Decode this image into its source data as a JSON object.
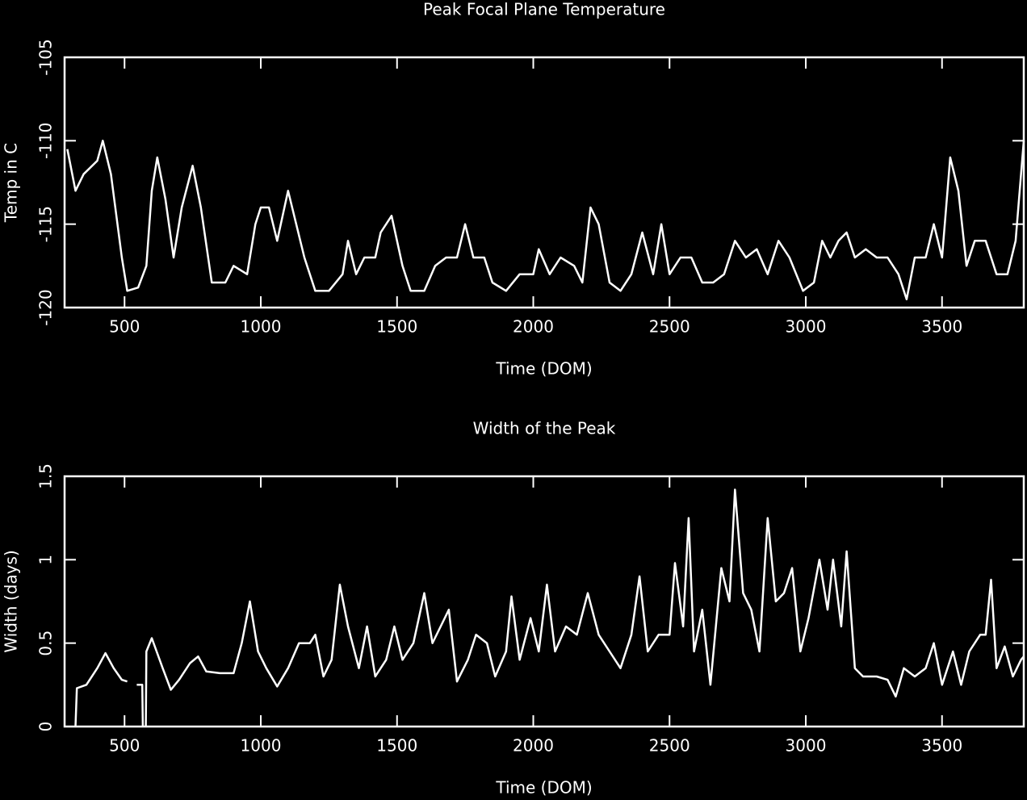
{
  "chart_data": [
    {
      "type": "line",
      "title": "Peak Focal Plane Temperature",
      "xlabel": "Time (DOM)",
      "ylabel": "Temp in C",
      "xlim": [
        280,
        3800
      ],
      "ylim": [
        -120,
        -105
      ],
      "xticks": [
        500,
        1000,
        1500,
        2000,
        2500,
        3000,
        3500
      ],
      "yticks": [
        -120,
        -115,
        -110,
        -105
      ],
      "color": "#ffffff",
      "x": [
        290,
        320,
        350,
        400,
        420,
        450,
        490,
        510,
        550,
        580,
        600,
        620,
        650,
        680,
        710,
        750,
        780,
        820,
        870,
        900,
        950,
        980,
        1000,
        1030,
        1060,
        1100,
        1130,
        1160,
        1200,
        1250,
        1300,
        1320,
        1350,
        1380,
        1420,
        1440,
        1480,
        1520,
        1550,
        1600,
        1640,
        1680,
        1720,
        1750,
        1780,
        1820,
        1850,
        1900,
        1950,
        2000,
        2020,
        2060,
        2100,
        2150,
        2180,
        2210,
        2240,
        2280,
        2320,
        2360,
        2400,
        2440,
        2470,
        2500,
        2540,
        2580,
        2620,
        2660,
        2700,
        2740,
        2780,
        2820,
        2860,
        2900,
        2940,
        2990,
        3030,
        3060,
        3090,
        3120,
        3150,
        3180,
        3220,
        3260,
        3300,
        3340,
        3370,
        3400,
        3440,
        3470,
        3500,
        3530,
        3560,
        3590,
        3620,
        3660,
        3700,
        3740,
        3770,
        3800
      ],
      "values": [
        -110.5,
        -113,
        -112,
        -111.2,
        -110,
        -112,
        -117,
        -119,
        -118.8,
        -117.5,
        -113,
        -111,
        -113.5,
        -117,
        -114,
        -111.5,
        -114,
        -118.5,
        -118.5,
        -117.5,
        -118,
        -115,
        -114,
        -114,
        -116,
        -113,
        -115,
        -117,
        -119,
        -119,
        -118,
        -116,
        -118,
        -117,
        -117,
        -115.5,
        -114.5,
        -117.5,
        -119,
        -119,
        -117.5,
        -117,
        -117,
        -115,
        -117,
        -117,
        -118.5,
        -119,
        -118,
        -118,
        -116.5,
        -118,
        -117,
        -117.5,
        -118.5,
        -114,
        -115,
        -118.5,
        -119,
        -118,
        -115.5,
        -118,
        -115,
        -118,
        -117,
        -117,
        -118.5,
        -118.5,
        -118,
        -116,
        -117,
        -116.5,
        -118,
        -116,
        -117,
        -119,
        -118.5,
        -116,
        -117,
        -116,
        -115.5,
        -117,
        -116.5,
        -117,
        -117,
        -118,
        -119.5,
        -117,
        -117,
        -115,
        -117,
        -111,
        -113,
        -117.5,
        -116,
        -116,
        -118,
        -118,
        -116,
        -110
      ]
    },
    {
      "type": "line",
      "title": "Width of the Peak",
      "xlabel": "Time (DOM)",
      "ylabel": "Width (days)",
      "xlim": [
        280,
        3800
      ],
      "ylim": [
        0,
        1.5
      ],
      "xticks": [
        500,
        1000,
        1500,
        2000,
        2500,
        3000,
        3500
      ],
      "yticks": [
        0,
        0.5,
        1,
        1.5
      ],
      "color": "#ffffff",
      "x": [
        320,
        325,
        360,
        400,
        430,
        460,
        490,
        510,
        530,
        545,
        565,
        567,
        572,
        578,
        580,
        600,
        640,
        670,
        700,
        740,
        770,
        800,
        850,
        900,
        930,
        960,
        990,
        1020,
        1060,
        1100,
        1140,
        1180,
        1200,
        1230,
        1260,
        1290,
        1320,
        1360,
        1390,
        1420,
        1460,
        1490,
        1520,
        1560,
        1600,
        1630,
        1660,
        1690,
        1720,
        1760,
        1790,
        1830,
        1860,
        1900,
        1920,
        1950,
        1990,
        2020,
        2050,
        2080,
        2120,
        2160,
        2200,
        2240,
        2280,
        2320,
        2360,
        2390,
        2420,
        2460,
        2500,
        2520,
        2550,
        2570,
        2590,
        2620,
        2650,
        2690,
        2720,
        2740,
        2770,
        2800,
        2830,
        2860,
        2890,
        2920,
        2950,
        2980,
        3010,
        3050,
        3080,
        3100,
        3130,
        3150,
        3180,
        3210,
        3260,
        3300,
        3330,
        3360,
        3400,
        3440,
        3470,
        3500,
        3540,
        3570,
        3600,
        3640,
        3660,
        3680,
        3700,
        3730,
        3760,
        3790,
        3800
      ],
      "values": [
        0,
        0.23,
        0.25,
        0.35,
        0.44,
        0.35,
        0.28,
        0.27,
        null,
        0.25,
        0.25,
        0,
        null,
        0,
        0.45,
        0.53,
        0.35,
        0.22,
        0.28,
        0.38,
        0.42,
        0.33,
        0.32,
        0.32,
        0.5,
        0.75,
        0.45,
        0.35,
        0.24,
        0.35,
        0.5,
        0.5,
        0.55,
        0.3,
        0.4,
        0.85,
        0.6,
        0.35,
        0.6,
        0.3,
        0.4,
        0.6,
        0.4,
        0.5,
        0.8,
        0.5,
        0.6,
        0.7,
        0.27,
        0.4,
        0.55,
        0.5,
        0.3,
        0.45,
        0.78,
        0.4,
        0.65,
        0.45,
        0.85,
        0.45,
        0.6,
        0.55,
        0.8,
        0.55,
        0.45,
        0.35,
        0.55,
        0.9,
        0.45,
        0.55,
        0.55,
        0.98,
        0.6,
        1.25,
        0.45,
        0.7,
        0.25,
        0.95,
        0.75,
        1.42,
        0.8,
        0.7,
        0.45,
        1.25,
        0.75,
        0.8,
        0.95,
        0.45,
        0.65,
        1.0,
        0.7,
        1.0,
        0.6,
        1.05,
        0.35,
        0.3,
        0.3,
        0.28,
        0.18,
        0.35,
        0.3,
        0.35,
        0.5,
        0.25,
        0.45,
        0.25,
        0.45,
        0.55,
        0.55,
        0.88,
        0.35,
        0.48,
        0.3,
        0.4,
        0.42
      ]
    }
  ]
}
